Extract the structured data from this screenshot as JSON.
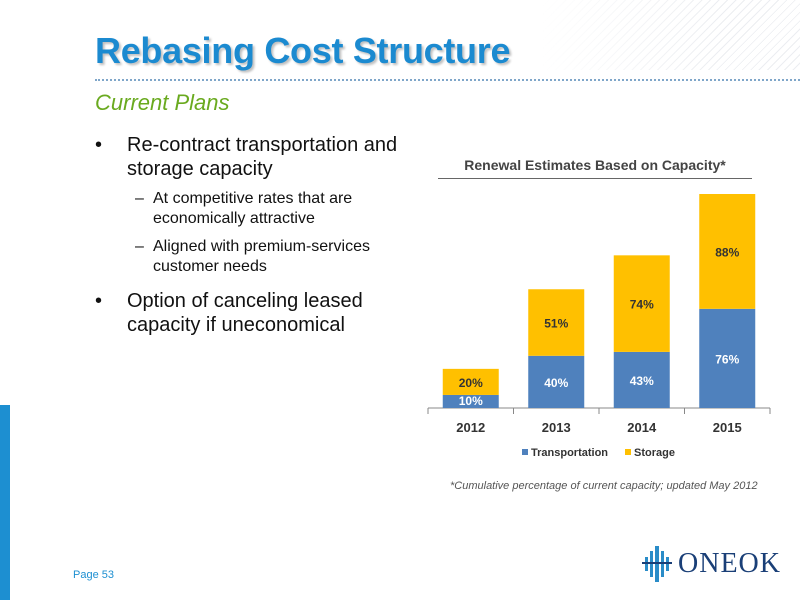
{
  "title": "Rebasing Cost Structure",
  "subtitle": "Current Plans",
  "bullets": [
    {
      "text": "Re-contract transportation and storage capacity",
      "sub": [
        "At competitive rates that are economically attractive",
        "Aligned with premium-services customer needs"
      ]
    },
    {
      "text": "Option of canceling leased capacity if uneconomical",
      "sub": []
    }
  ],
  "footnote": "*Cumulative percentage of current capacity; updated May 2012",
  "page_number": "Page 53",
  "logo_text": "ONEOK",
  "colors": {
    "title": "#1b8ad0",
    "subtitle": "#6aaa1f",
    "transportation": "#4f81bd",
    "storage": "#ffc000"
  },
  "chart_data": {
    "type": "bar",
    "stacked": true,
    "title": "Renewal Estimates Based on Capacity*",
    "categories": [
      "2012",
      "2013",
      "2014",
      "2015"
    ],
    "series": [
      {
        "name": "Transportation",
        "values": [
          10,
          40,
          43,
          76
        ],
        "labels": [
          "10%",
          "40%",
          "43%",
          "76%"
        ],
        "color": "#4f81bd"
      },
      {
        "name": "Storage",
        "values": [
          20,
          51,
          74,
          88
        ],
        "labels": [
          "20%",
          "51%",
          "74%",
          "88%"
        ],
        "color": "#ffc000"
      }
    ],
    "ylim": [
      0,
      164
    ],
    "legend": "bottom",
    "grid": false
  }
}
